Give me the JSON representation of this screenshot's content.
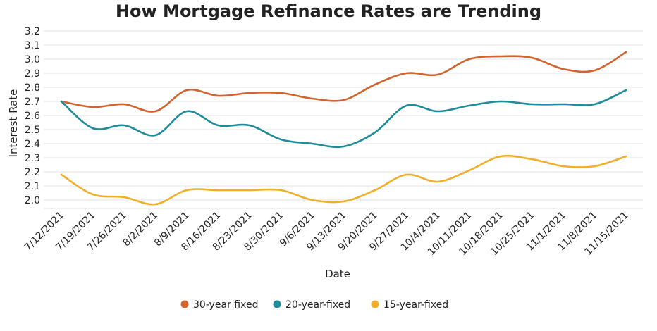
{
  "chart_data": {
    "type": "line",
    "title": "How Mortgage Refinance Rates are Trending",
    "xlabel": "Date",
    "ylabel": "Interest Rate",
    "ylim": [
      1.94,
      3.2
    ],
    "yticks": [
      "2.0",
      "2.1",
      "2.2",
      "2.3",
      "2.4",
      "2.5",
      "2.6",
      "2.7",
      "2.8",
      "2.9",
      "3.0",
      "3.1",
      "3.2"
    ],
    "grid": true,
    "legend_position": "bottom",
    "categories": [
      "7/12/2021",
      "7/19/2021",
      "7/26/2021",
      "8/2/2021",
      "8/9/2021",
      "8/16/2021",
      "8/23/2021",
      "8/30/2021",
      "9/6/2021",
      "9/13/2021",
      "9/20/2021",
      "9/27/2021",
      "10/4/2021",
      "10/11/2021",
      "10/18/2021",
      "10/25/2021",
      "11/1/2021",
      "11/8/2021",
      "11/15/2021"
    ],
    "series": [
      {
        "name": "30-year fixed",
        "color": "#D2632E",
        "values": [
          2.7,
          2.66,
          2.68,
          2.63,
          2.78,
          2.74,
          2.76,
          2.76,
          2.72,
          2.71,
          2.82,
          2.9,
          2.89,
          3.0,
          3.02,
          3.01,
          2.93,
          2.92,
          3.05
        ]
      },
      {
        "name": "20-year-fixed",
        "color": "#1E8C9A",
        "values": [
          2.7,
          2.51,
          2.53,
          2.46,
          2.63,
          2.53,
          2.53,
          2.43,
          2.4,
          2.38,
          2.48,
          2.67,
          2.63,
          2.67,
          2.7,
          2.68,
          2.68,
          2.68,
          2.78
        ]
      },
      {
        "name": "15-year-fixed",
        "color": "#F0AE2B",
        "values": [
          2.18,
          2.04,
          2.02,
          1.97,
          2.07,
          2.07,
          2.07,
          2.07,
          2.0,
          1.99,
          2.07,
          2.18,
          2.13,
          2.21,
          2.31,
          2.29,
          2.24,
          2.24,
          2.31
        ]
      }
    ]
  }
}
